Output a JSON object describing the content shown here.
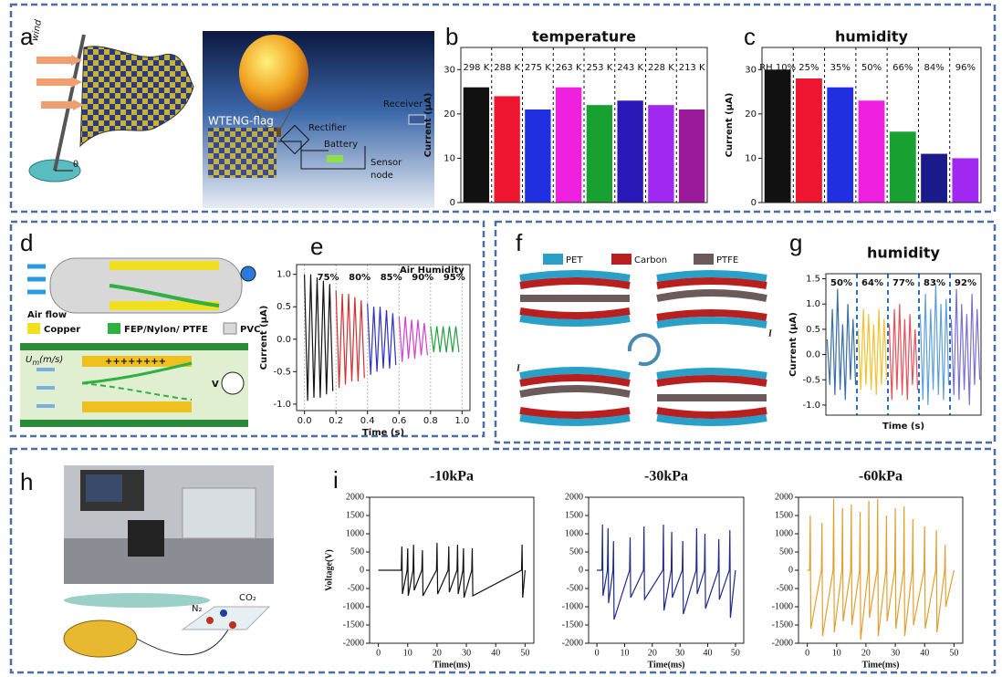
{
  "figure": {
    "a": {
      "label": "a",
      "wind": "wind",
      "angle": "θ",
      "flag": "WTENG-flag",
      "rectifier": "Rectifier",
      "battery": "Battery",
      "receiver": "Receiver",
      "sensor": "Sensor",
      "node": "node"
    },
    "d": {
      "label": "d",
      "air_flow": "Air flow",
      "copper": "Copper",
      "fep": "FEP/Nylon/ PTFE",
      "pvc": "PVC",
      "velocity": "U",
      "velocity_sub": "m",
      "velocity_unit": "(m/s)",
      "charges": "++++++++",
      "voltmeter": "V"
    },
    "f": {
      "label": "f",
      "pet": "PET",
      "carbon": "Carbon",
      "ptfe": "PTFE",
      "current_left": "I",
      "current_right": "I"
    },
    "h": {
      "label": "h",
      "n2": "N₂",
      "co2": "CO₂"
    }
  },
  "chart_data": [
    {
      "type": "bar",
      "label": "b",
      "title": "temperature",
      "y_label": "Current (μA)",
      "categories": [
        "298 K",
        "288 K",
        "275 K",
        "263 K",
        "253 K",
        "243 K",
        "228 K",
        "213 K"
      ],
      "values": [
        26,
        24,
        21,
        26,
        22,
        23,
        22,
        21
      ],
      "colors": [
        "#111111",
        "#ee1530",
        "#2030e0",
        "#f020e0",
        "#18a030",
        "#2a18b8",
        "#a028f0",
        "#9a1a9a"
      ],
      "ylim": [
        0,
        35
      ],
      "yticks": [
        0,
        10,
        20,
        30
      ]
    },
    {
      "type": "bar",
      "label": "c",
      "title": "humidity",
      "y_label": "Current (μA)",
      "categories": [
        "RH 10%",
        "25%",
        "35%",
        "50%",
        "66%",
        "84%",
        "96%"
      ],
      "values": [
        30,
        28,
        26,
        23,
        16,
        11,
        10
      ],
      "colors": [
        "#111111",
        "#ee1530",
        "#2030e0",
        "#f020e0",
        "#18a030",
        "#1a1a8a",
        "#a028f0"
      ],
      "ylim": [
        0,
        35
      ],
      "yticks": [
        0,
        10,
        20,
        30
      ]
    },
    {
      "type": "line",
      "label": "e",
      "y_label": "Current (μA)",
      "x_label": "Time (s)",
      "annotation": "Air Humidity",
      "series": [
        {
          "name": "75%",
          "color": "#111111",
          "x": [
            0,
            0.02,
            0.04,
            0.06,
            0.08,
            0.1,
            0.12,
            0.14,
            0.16,
            0.18
          ],
          "values": [
            1.0,
            -0.95,
            1.0,
            -0.9,
            0.95,
            -0.9,
            0.9,
            -0.85,
            0.85,
            -0.8
          ]
        },
        {
          "name": "80%",
          "color": "#d03030",
          "x": [
            0.2,
            0.22,
            0.24,
            0.26,
            0.28,
            0.3,
            0.32,
            0.34,
            0.36,
            0.38
          ],
          "values": [
            0.75,
            -0.75,
            0.7,
            -0.7,
            0.7,
            -0.65,
            0.65,
            -0.65,
            0.6,
            -0.6
          ]
        },
        {
          "name": "85%",
          "color": "#3030c0",
          "x": [
            0.4,
            0.42,
            0.44,
            0.46,
            0.48,
            0.5,
            0.52,
            0.54,
            0.56,
            0.58
          ],
          "values": [
            0.55,
            -0.55,
            0.5,
            -0.5,
            0.5,
            -0.45,
            0.45,
            -0.45,
            0.4,
            -0.4
          ]
        },
        {
          "name": "90%",
          "color": "#d040d0",
          "x": [
            0.6,
            0.62,
            0.64,
            0.66,
            0.68,
            0.7,
            0.72,
            0.74,
            0.76,
            0.78
          ],
          "values": [
            0.35,
            -0.35,
            0.35,
            -0.3,
            0.3,
            -0.3,
            0.3,
            -0.25,
            0.25,
            -0.25
          ]
        },
        {
          "name": "95%",
          "color": "#20a040",
          "x": [
            0.8,
            0.82,
            0.84,
            0.86,
            0.88,
            0.9,
            0.92,
            0.94,
            0.96,
            0.98
          ],
          "values": [
            0.2,
            -0.2,
            0.2,
            -0.2,
            0.2,
            -0.2,
            0.2,
            -0.2,
            0.2,
            -0.2
          ]
        }
      ],
      "xlim": [
        -0.05,
        1.05
      ],
      "xticks": [
        {
          "value": 0,
          "label": "0.0"
        },
        0.2,
        0.4,
        0.6,
        0.8,
        {
          "value": 1,
          "label": "1.0"
        }
      ],
      "ylim": [
        -1.1,
        1.15
      ],
      "yticks": [
        {
          "value": -1,
          "label": "-1.0"
        },
        -0.5,
        {
          "value": 0,
          "label": "0.0"
        },
        0.5,
        {
          "value": 1,
          "label": "1.0"
        }
      ]
    },
    {
      "type": "line",
      "label": "g",
      "title": "humidity",
      "y_label": "Current (μA)",
      "x_label": "Time (s)",
      "series": [
        {
          "name": "50%",
          "color": "#3a6ea5",
          "values": [
            0.3,
            -0.6,
            0.9,
            -0.8,
            1.3,
            -0.7,
            0.6,
            -0.9,
            1.0,
            -0.5,
            0.7,
            -0.6
          ]
        },
        {
          "name": "64%",
          "color": "#f2c12e",
          "values": [
            0.5,
            -0.7,
            0.9,
            -0.6,
            0.8,
            -0.7,
            0.6,
            -0.8,
            0.9,
            -0.6,
            0.7,
            -0.5
          ]
        },
        {
          "name": "77%",
          "color": "#e8505b",
          "values": [
            0.6,
            -0.9,
            0.9,
            -0.7,
            1.0,
            -0.8,
            0.7,
            -0.9,
            0.8,
            -0.6,
            0.5,
            -0.7
          ]
        },
        {
          "name": "83%",
          "color": "#5ea0d8",
          "values": [
            0.8,
            -0.9,
            1.2,
            -1.0,
            0.9,
            -0.7,
            1.4,
            -0.8,
            1.0,
            -0.9,
            1.1,
            -0.6
          ]
        },
        {
          "name": "92%",
          "color": "#7b6fd0",
          "values": [
            0.7,
            -0.8,
            1.3,
            -0.9,
            1.0,
            -0.7,
            0.8,
            -1.0,
            1.2,
            -0.6,
            0.9,
            -0.5
          ]
        }
      ],
      "ylim": [
        -1.2,
        1.6
      ],
      "yticks": [
        {
          "value": -1,
          "label": "-1.0"
        },
        -0.5,
        {
          "value": 0,
          "label": "0.0"
        },
        0.5,
        {
          "value": 1,
          "label": "1.0"
        },
        1.5
      ]
    },
    {
      "type": "line",
      "label": "i",
      "title": "-10kPa",
      "y_label": "Voltage(V)",
      "x_label": "Time(ms)",
      "series": [
        {
          "color": "#111111",
          "x": [
            0,
            7.8,
            8,
            8.2,
            9.8,
            10,
            10.2,
            11.8,
            12,
            12.2,
            14.8,
            15,
            15.2,
            19.8,
            20,
            20.2,
            23.8,
            24,
            24.2,
            26.8,
            27,
            27.2,
            28.8,
            29,
            29.2,
            31.8,
            32,
            32.2,
            48.8,
            49,
            49.2,
            50
          ],
          "values": [
            0,
            0,
            650,
            -650,
            0,
            600,
            -700,
            0,
            700,
            -550,
            0,
            550,
            -700,
            0,
            750,
            -650,
            0,
            650,
            -600,
            0,
            700,
            -650,
            0,
            600,
            -750,
            0,
            600,
            -700,
            0,
            700,
            -750,
            0
          ]
        }
      ],
      "xlim": [
        -3,
        53
      ],
      "xticks": [
        0,
        10,
        20,
        30,
        40,
        50
      ],
      "ylim": [
        -2000,
        2000
      ],
      "yticks": [
        -2000,
        -1500,
        -1000,
        -500,
        0,
        500,
        1000,
        1500,
        2000
      ]
    },
    {
      "type": "line",
      "title": "-30kPa",
      "x_label": "Time(ms)",
      "series": [
        {
          "color": "#1f2a8a",
          "x": [
            0,
            1.8,
            2,
            2.2,
            3.8,
            4,
            4.2,
            5.8,
            6,
            6.2,
            11.8,
            12,
            12.2,
            16.8,
            17,
            17.2,
            23.8,
            24,
            24.2,
            26.8,
            27,
            27.2,
            30.8,
            31,
            31.2,
            35.8,
            36,
            36.2,
            38.8,
            39,
            39.2,
            43.8,
            44,
            44.2,
            47.8,
            48,
            48.2,
            50
          ],
          "values": [
            0,
            0,
            1250,
            -700,
            0,
            1150,
            -900,
            0,
            800,
            -1350,
            0,
            900,
            -750,
            0,
            1200,
            -800,
            0,
            1250,
            -1100,
            0,
            1050,
            -750,
            0,
            800,
            -1200,
            0,
            1150,
            -650,
            0,
            1000,
            -1050,
            0,
            850,
            -800,
            0,
            1100,
            -1300,
            0
          ]
        }
      ],
      "xlim": [
        -3,
        53
      ],
      "xticks": [
        0,
        10,
        20,
        30,
        40,
        50
      ],
      "ylim": [
        -2000,
        2000
      ],
      "yticks": [
        -2000,
        -1500,
        -1000,
        -500,
        0,
        500,
        1000,
        1500,
        2000
      ]
    },
    {
      "type": "line",
      "title": "-60kPa",
      "x_label": "Time(ms)",
      "series": [
        {
          "color": "#e0a030",
          "x": [
            0,
            0.8,
            1,
            1.2,
            4.8,
            5,
            5.2,
            8.8,
            9,
            9.2,
            11.8,
            12,
            12.2,
            14.8,
            15,
            15.2,
            17.8,
            18,
            18.2,
            20.8,
            21,
            21.2,
            23.8,
            24,
            24.2,
            26.8,
            27,
            27.2,
            29.8,
            30,
            30.2,
            32.8,
            33,
            33.2,
            35.8,
            36,
            36.2,
            39.8,
            40,
            40.2,
            43.8,
            44,
            44.2,
            46.8,
            47,
            47.2,
            50
          ],
          "values": [
            0,
            0,
            1500,
            -1600,
            0,
            1300,
            -1800,
            0,
            1950,
            -1700,
            0,
            1700,
            -1400,
            0,
            1800,
            -1500,
            0,
            1600,
            -1900,
            0,
            1900,
            -1300,
            0,
            1950,
            -1800,
            0,
            1500,
            -1400,
            0,
            1700,
            -1600,
            0,
            1750,
            -1800,
            0,
            1400,
            -1500,
            0,
            1200,
            -1600,
            0,
            1100,
            -1700,
            0,
            700,
            -1000,
            0
          ]
        }
      ],
      "xlim": [
        -3,
        53
      ],
      "xticks": [
        0,
        10,
        20,
        30,
        40,
        50
      ],
      "ylim": [
        -2000,
        2000
      ],
      "yticks": [
        -2000,
        -1500,
        -1000,
        -500,
        0,
        500,
        1000,
        1500,
        2000
      ]
    }
  ]
}
